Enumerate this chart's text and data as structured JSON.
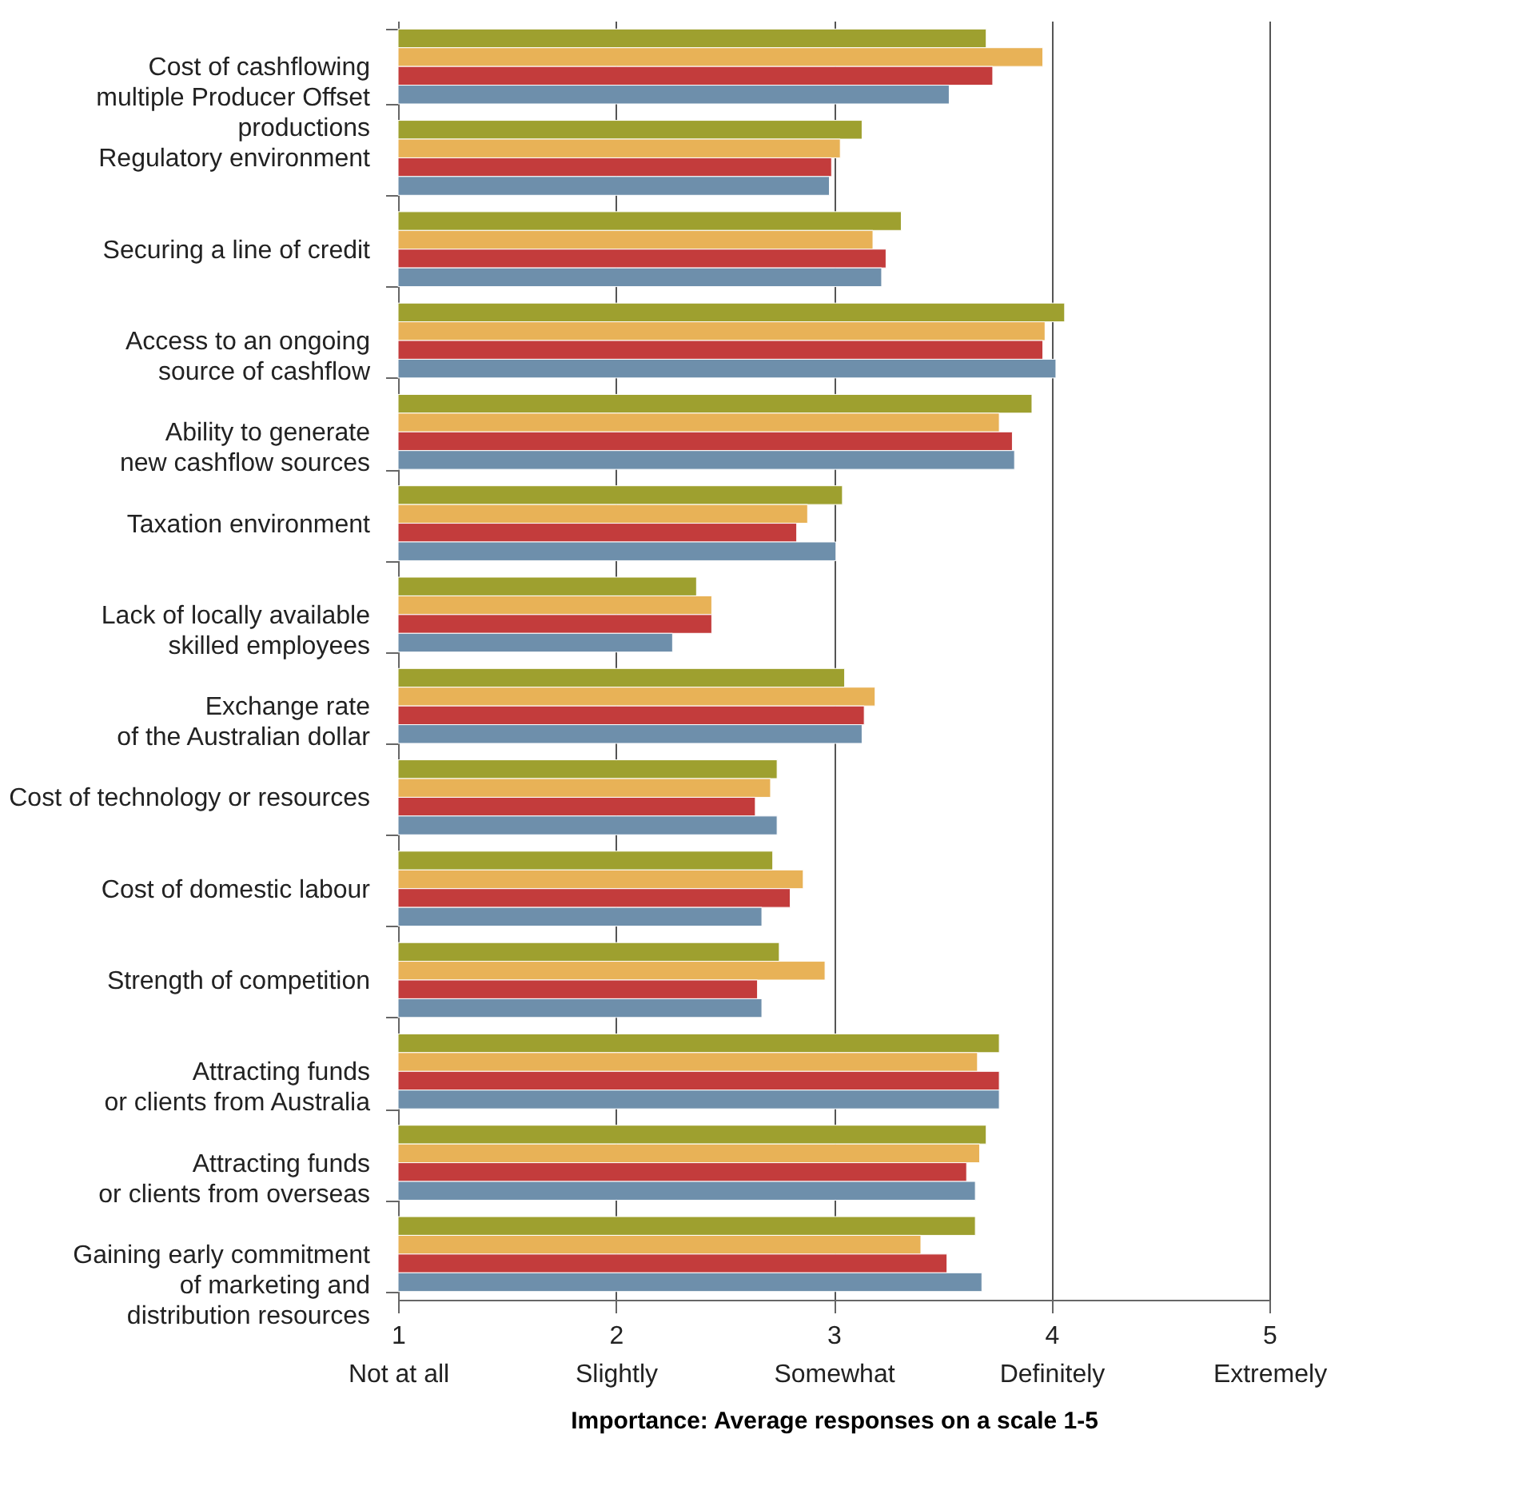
{
  "chart_data": {
    "type": "bar",
    "orientation": "horizontal",
    "categories": [
      "Cost of cashflowing\nmultiple Producer Offset\nproductions",
      "Regulatory environment",
      "Securing a line of credit",
      "Access to an ongoing\nsource of cashflow",
      "Ability to generate\nnew cashflow sources",
      "Taxation environment",
      "Lack of locally available\nskilled employees",
      "Exchange rate\nof the Australian dollar",
      "Cost of technology or resources",
      "Cost of domestic labour",
      "Strength of competition",
      "Attracting funds\nor clients from Australia",
      "Attracting funds\nor clients from overseas",
      "Gaining early commitment\nof marketing and\ndistribution resources"
    ],
    "series": [
      {
        "color": "#9ea02f",
        "values": [
          3.7,
          3.13,
          3.31,
          4.06,
          3.91,
          3.04,
          2.37,
          3.05,
          2.74,
          2.72,
          2.75,
          3.76,
          3.7,
          3.65
        ]
      },
      {
        "color": "#e8b257",
        "values": [
          3.96,
          3.03,
          3.18,
          3.97,
          3.76,
          2.88,
          2.44,
          3.19,
          2.71,
          2.86,
          2.96,
          3.66,
          3.67,
          3.4
        ]
      },
      {
        "color": "#c33c3c",
        "values": [
          3.73,
          2.99,
          3.24,
          3.96,
          3.82,
          2.83,
          2.44,
          3.14,
          2.64,
          2.8,
          2.65,
          3.76,
          3.61,
          3.52
        ]
      },
      {
        "color": "#6e8fab",
        "values": [
          3.53,
          2.98,
          3.22,
          4.02,
          3.83,
          3.01,
          2.26,
          3.13,
          2.74,
          2.67,
          2.67,
          3.76,
          3.65,
          3.68
        ]
      }
    ],
    "xlim": [
      1,
      5
    ],
    "xticks": [
      {
        "value": 1,
        "label": "1\nNot at all"
      },
      {
        "value": 2,
        "label": "2\nSlightly"
      },
      {
        "value": 3,
        "label": "3\nSomewhat"
      },
      {
        "value": 4,
        "label": "4\nDefinitely"
      },
      {
        "value": 5,
        "label": "5\nExtremely"
      }
    ],
    "xlabel": "Importance: Average responses on a scale 1-5",
    "grid": "x",
    "legend": false
  }
}
